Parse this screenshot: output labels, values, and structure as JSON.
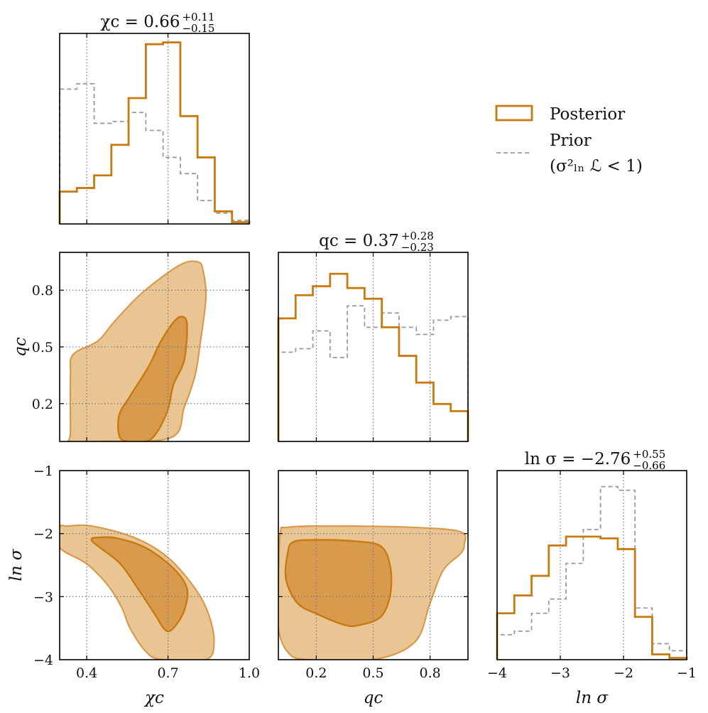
{
  "colors": {
    "posterior": "#C87A0F",
    "prior": "#9B9B9B",
    "fill_inner": "#D89A4C",
    "fill_outer": "#E9C593"
  },
  "legend": {
    "posterior": "Posterior",
    "prior": "Prior",
    "prior_condition": "(σ²ₗₙ ℒ < 1)"
  },
  "chart_data": [
    {
      "type": "histogram",
      "name": "chi_c-marginal",
      "title": "χc = 0.66 +0.11 −0.15",
      "title_parts": {
        "lhs": "χc = 0.66",
        "upper": "+0.11",
        "lower": "−0.15"
      },
      "xlim": [
        0.3,
        1.0
      ],
      "xticks": [
        0.4,
        0.7,
        1.0
      ],
      "edges": [
        0.3,
        0.3636,
        0.4273,
        0.4909,
        0.5545,
        0.6182,
        0.6818,
        0.7455,
        0.8091,
        0.8727,
        0.9364,
        1.0
      ],
      "posterior": [
        0.18,
        0.2,
        0.27,
        0.44,
        0.7,
        1.0,
        1.01,
        0.6,
        0.37,
        0.07,
        0.01
      ],
      "prior": [
        0.75,
        0.78,
        0.56,
        0.57,
        0.62,
        0.52,
        0.37,
        0.28,
        0.13,
        0.06,
        0.02
      ],
      "ylim": [
        0,
        1.06
      ]
    },
    {
      "type": "histogram",
      "name": "q_c-marginal",
      "title": "qc = 0.37 +0.28 −0.23",
      "title_parts": {
        "lhs": "qc = 0.37",
        "upper": "+0.28",
        "lower": "−0.23"
      },
      "xlim": [
        0.0,
        1.0
      ],
      "xticks": [
        0.2,
        0.5,
        0.8
      ],
      "edges": [
        0.0,
        0.0909,
        0.1818,
        0.2727,
        0.3636,
        0.4545,
        0.5455,
        0.6364,
        0.7273,
        0.8182,
        0.9091,
        1.0
      ],
      "posterior": [
        0.69,
        0.82,
        0.87,
        0.94,
        0.86,
        0.8,
        0.64,
        0.48,
        0.33,
        0.21,
        0.17
      ],
      "prior": [
        0.5,
        0.52,
        0.62,
        0.47,
        0.76,
        0.64,
        0.72,
        0.64,
        0.6,
        0.68,
        0.7
      ],
      "ylim": [
        0,
        1.06
      ]
    },
    {
      "type": "histogram",
      "name": "ln_sigma-marginal",
      "title": "ln σ = −2.76 +0.55 −0.66",
      "title_parts": {
        "lhs": "ln σ = −2.76",
        "upper": "+0.55",
        "lower": "−0.66"
      },
      "xlim": [
        -4.0,
        -1.0
      ],
      "xticks": [
        -4,
        -3,
        -2,
        -1
      ],
      "xtick_labels": [
        "−4",
        "−3",
        "−2",
        "−1"
      ],
      "xlabel": "ln σ",
      "edges": [
        -4.0,
        -3.7273,
        -3.4545,
        -3.1818,
        -2.9091,
        -2.6364,
        -2.3636,
        -2.0909,
        -1.8182,
        -1.5455,
        -1.2727,
        -1.0
      ],
      "posterior": [
        0.26,
        0.36,
        0.47,
        0.64,
        0.69,
        0.69,
        0.68,
        0.62,
        0.24,
        0.03,
        0.01
      ],
      "prior": [
        0.14,
        0.16,
        0.26,
        0.34,
        0.54,
        0.73,
        0.97,
        0.95,
        0.29,
        0.09,
        0.05
      ],
      "ylim": [
        0,
        1.06
      ]
    },
    {
      "type": "contour",
      "name": "qc-vs-chic",
      "xlim": [
        0.3,
        1.0
      ],
      "ylim": [
        0.0,
        1.0
      ],
      "yticks": [
        0.2,
        0.5,
        0.8
      ],
      "ylabel": "qc",
      "outer": [
        [
          0.34,
          0.05
        ],
        [
          0.34,
          0.35
        ],
        [
          0.35,
          0.46
        ],
        [
          0.44,
          0.53
        ],
        [
          0.5,
          0.63
        ],
        [
          0.6,
          0.78
        ],
        [
          0.74,
          0.93
        ],
        [
          0.81,
          0.95
        ],
        [
          0.83,
          0.9
        ],
        [
          0.84,
          0.76
        ],
        [
          0.82,
          0.53
        ],
        [
          0.8,
          0.35
        ],
        [
          0.76,
          0.18
        ],
        [
          0.71,
          0.02
        ],
        [
          0.45,
          0.0
        ],
        [
          0.34,
          0.0
        ]
      ],
      "inner": [
        [
          0.52,
          0.03
        ],
        [
          0.52,
          0.14
        ],
        [
          0.56,
          0.24
        ],
        [
          0.63,
          0.4
        ],
        [
          0.67,
          0.52
        ],
        [
          0.72,
          0.63
        ],
        [
          0.75,
          0.66
        ],
        [
          0.77,
          0.62
        ],
        [
          0.76,
          0.43
        ],
        [
          0.72,
          0.3
        ],
        [
          0.7,
          0.17
        ],
        [
          0.66,
          0.05
        ],
        [
          0.62,
          0.0
        ],
        [
          0.55,
          0.0
        ]
      ]
    },
    {
      "type": "contour",
      "name": "lnsigma-vs-chic",
      "xlim": [
        0.3,
        1.0
      ],
      "ylim": [
        -4.0,
        -1.0
      ],
      "yticks": [
        -1,
        -2,
        -3,
        -4
      ],
      "ytick_labels": [
        "−1",
        "−2",
        "−3",
        "−4"
      ],
      "xticks": [
        0.4,
        0.7,
        1.0
      ],
      "xlabel": "χc",
      "ylabel": "ln σ",
      "outer": [
        [
          0.3,
          -1.9
        ],
        [
          0.3,
          -2.22
        ],
        [
          0.4,
          -2.48
        ],
        [
          0.48,
          -2.83
        ],
        [
          0.53,
          -3.18
        ],
        [
          0.56,
          -3.5
        ],
        [
          0.62,
          -3.88
        ],
        [
          0.68,
          -4.0
        ],
        [
          0.84,
          -4.0
        ],
        [
          0.87,
          -3.72
        ],
        [
          0.85,
          -3.28
        ],
        [
          0.8,
          -2.87
        ],
        [
          0.7,
          -2.38
        ],
        [
          0.58,
          -2.07
        ],
        [
          0.42,
          -1.88
        ],
        [
          0.33,
          -1.88
        ]
      ],
      "inner": [
        [
          0.42,
          -2.12
        ],
        [
          0.52,
          -2.46
        ],
        [
          0.59,
          -2.88
        ],
        [
          0.65,
          -3.27
        ],
        [
          0.69,
          -3.53
        ],
        [
          0.72,
          -3.5
        ],
        [
          0.76,
          -3.22
        ],
        [
          0.77,
          -2.87
        ],
        [
          0.72,
          -2.55
        ],
        [
          0.62,
          -2.23
        ],
        [
          0.52,
          -2.08
        ],
        [
          0.45,
          -2.06
        ]
      ]
    },
    {
      "type": "contour",
      "name": "lnsigma-vs-qc",
      "xlim": [
        0.0,
        1.0
      ],
      "ylim": [
        -4.0,
        -1.0
      ],
      "xticks": [
        0.2,
        0.5,
        0.8
      ],
      "xlabel": "qc",
      "outer": [
        [
          0.01,
          -2.0
        ],
        [
          0.0,
          -2.8
        ],
        [
          0.0,
          -3.5
        ],
        [
          0.05,
          -3.88
        ],
        [
          0.15,
          -4.0
        ],
        [
          0.5,
          -4.0
        ],
        [
          0.72,
          -3.72
        ],
        [
          0.8,
          -3.1
        ],
        [
          0.87,
          -2.58
        ],
        [
          0.96,
          -2.32
        ],
        [
          0.98,
          -2.18
        ],
        [
          0.96,
          -1.97
        ],
        [
          0.7,
          -1.9
        ],
        [
          0.28,
          -1.88
        ],
        [
          0.05,
          -1.9
        ]
      ],
      "inner": [
        [
          0.05,
          -2.3
        ],
        [
          0.04,
          -2.72
        ],
        [
          0.1,
          -3.1
        ],
        [
          0.2,
          -3.27
        ],
        [
          0.35,
          -3.45
        ],
        [
          0.43,
          -3.45
        ],
        [
          0.54,
          -3.32
        ],
        [
          0.59,
          -2.97
        ],
        [
          0.59,
          -2.52
        ],
        [
          0.54,
          -2.2
        ],
        [
          0.4,
          -2.12
        ],
        [
          0.2,
          -2.1
        ],
        [
          0.08,
          -2.13
        ]
      ]
    }
  ]
}
